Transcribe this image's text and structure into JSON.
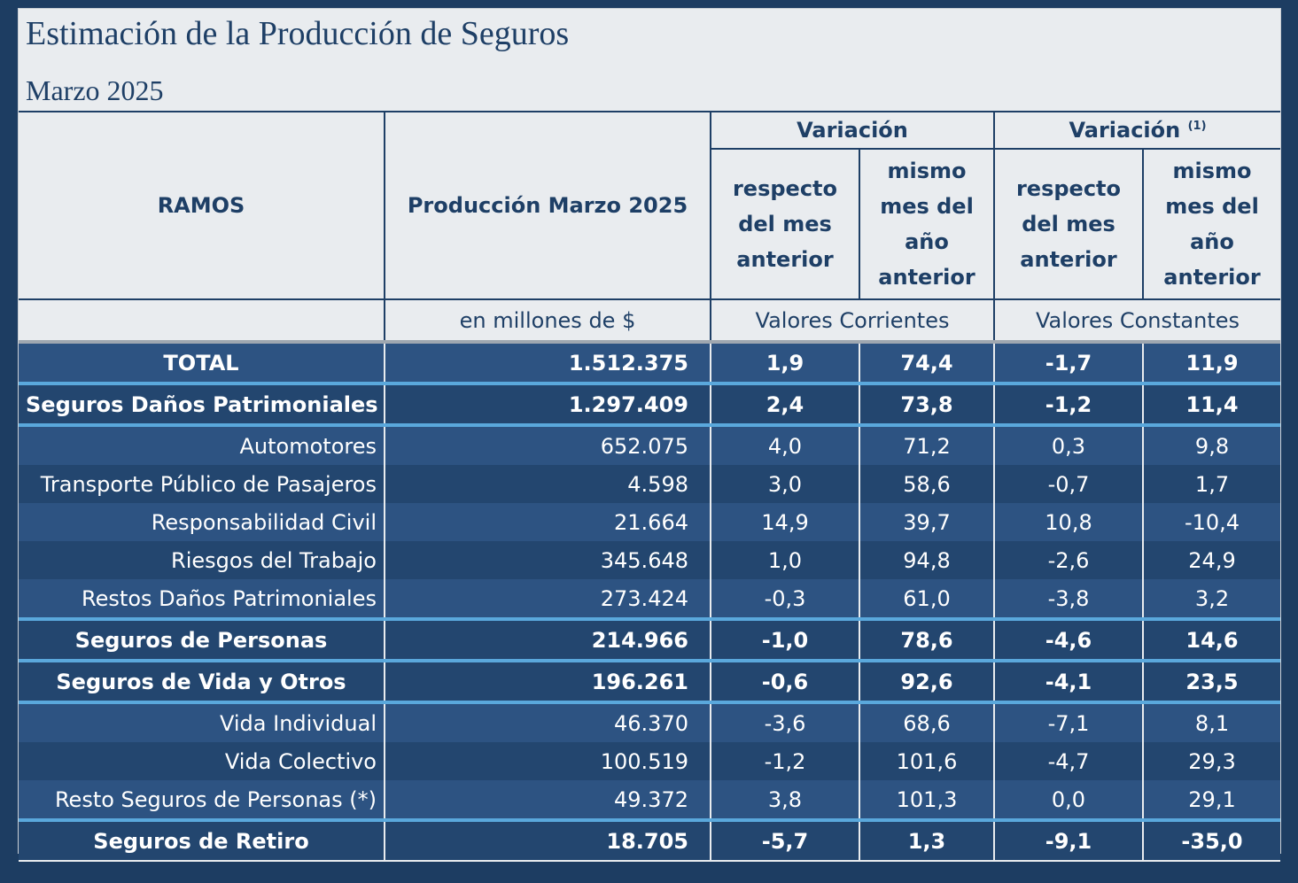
{
  "header": {
    "title": "Estimación de la Producción de Seguros",
    "subtitle": "Marzo 2025"
  },
  "columns": {
    "ramos": "RAMOS",
    "produccion": "Producción Marzo 2025",
    "variacion": "Variación",
    "variacion_const": "Variación",
    "variacion_const_note": "(1)",
    "resp_mes_anterior": "respecto del mes anterior",
    "mismo_mes_anio": "mismo mes del año anterior",
    "unidad": "en millones de $",
    "valores_corrientes": "Valores Corrientes",
    "valores_constantes": "Valores Constantes"
  },
  "rows": [
    {
      "label": "TOTAL",
      "prod": "1.512.375",
      "vc_mes": "1,9",
      "vc_anio": "74,4",
      "vk_mes": "-1,7",
      "vk_anio": "11,9"
    },
    {
      "label": "Seguros Daños Patrimoniales",
      "prod": "1.297.409",
      "vc_mes": "2,4",
      "vc_anio": "73,8",
      "vk_mes": "-1,2",
      "vk_anio": "11,4"
    },
    {
      "label": "Automotores",
      "prod": "652.075",
      "vc_mes": "4,0",
      "vc_anio": "71,2",
      "vk_mes": "0,3",
      "vk_anio": "9,8"
    },
    {
      "label": "Transporte Público de Pasajeros",
      "prod": "4.598",
      "vc_mes": "3,0",
      "vc_anio": "58,6",
      "vk_mes": "-0,7",
      "vk_anio": "1,7"
    },
    {
      "label": "Responsabilidad Civil",
      "prod": "21.664",
      "vc_mes": "14,9",
      "vc_anio": "39,7",
      "vk_mes": "10,8",
      "vk_anio": "-10,4"
    },
    {
      "label": "Riesgos del Trabajo",
      "prod": "345.648",
      "vc_mes": "1,0",
      "vc_anio": "94,8",
      "vk_mes": "-2,6",
      "vk_anio": "24,9"
    },
    {
      "label": "Restos Daños Patrimoniales",
      "prod": "273.424",
      "vc_mes": "-0,3",
      "vc_anio": "61,0",
      "vk_mes": "-3,8",
      "vk_anio": "3,2"
    },
    {
      "label": "Seguros de Personas",
      "prod": "214.966",
      "vc_mes": "-1,0",
      "vc_anio": "78,6",
      "vk_mes": "-4,6",
      "vk_anio": "14,6"
    },
    {
      "label": "Seguros de Vida y Otros",
      "prod": "196.261",
      "vc_mes": "-0,6",
      "vc_anio": "92,6",
      "vk_mes": "-4,1",
      "vk_anio": "23,5"
    },
    {
      "label": "Vida Individual",
      "prod": "46.370",
      "vc_mes": "-3,6",
      "vc_anio": "68,6",
      "vk_mes": "-7,1",
      "vk_anio": "8,1"
    },
    {
      "label": "Vida Colectivo",
      "prod": "100.519",
      "vc_mes": "-1,2",
      "vc_anio": "101,6",
      "vk_mes": "-4,7",
      "vk_anio": "29,3"
    },
    {
      "label": "Resto Seguros de Personas (*)",
      "prod": "49.372",
      "vc_mes": "3,8",
      "vc_anio": "101,3",
      "vk_mes": "0,0",
      "vk_anio": "29,1"
    },
    {
      "label": "Seguros de Retiro",
      "prod": "18.705",
      "vc_mes": "-5,7",
      "vc_anio": "1,3",
      "vk_mes": "-9,1",
      "vk_anio": "-35,0"
    }
  ]
}
